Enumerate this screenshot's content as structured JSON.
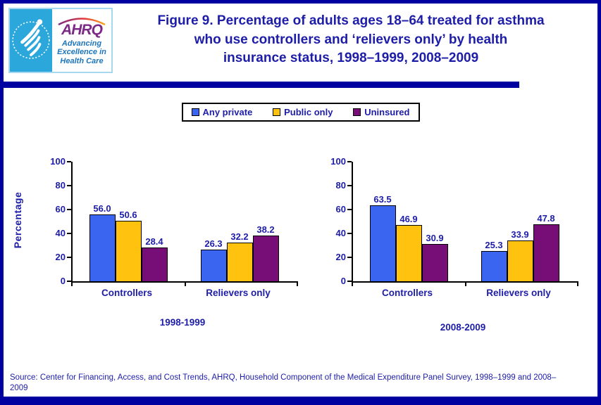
{
  "page": {
    "title": "Figure 9. Percentage of adults ages 18–64 treated for asthma\nwho use controllers and ‘relievers only’ by health\ninsurance status, 1998–1999, 2008–2009",
    "source": "Source: Center for Financing, Access, and Cost Trends, AHRQ, Household Component of the Medical Expenditure Panel Survey,  1998–1999 and 2008–2009"
  },
  "logo": {
    "org_abbr": "AHRQ",
    "tagline_line1": "Advancing",
    "tagline_line2": "Excellence in",
    "tagline_line3": "Health Care"
  },
  "legend": {
    "items": [
      {
        "label": "Any private",
        "color": "#3A65F1"
      },
      {
        "label": "Public only",
        "color": "#FFC20E"
      },
      {
        "label": "Uninsured",
        "color": "#770D77"
      }
    ]
  },
  "colors": {
    "accent_navy": "#0000A0",
    "text_navy": "#1D1DA8",
    "bar_blue": "#3A65F1",
    "bar_yellow": "#FFC20E",
    "bar_purple": "#770D77"
  },
  "chart_data": [
    {
      "type": "bar",
      "title": "1998-1999",
      "ylabel": "Percentage",
      "ylim": [
        0,
        100
      ],
      "yticks": [
        0,
        20,
        40,
        60,
        80,
        100
      ],
      "categories": [
        "Controllers",
        "Relievers only"
      ],
      "legend_position": "top-center",
      "grid": false,
      "series": [
        {
          "name": "Any private",
          "color": "#3A65F1",
          "values": [
            56.0,
            26.3
          ]
        },
        {
          "name": "Public only",
          "color": "#FFC20E",
          "values": [
            50.6,
            32.2
          ]
        },
        {
          "name": "Uninsured",
          "color": "#770D77",
          "values": [
            28.4,
            38.2
          ]
        }
      ]
    },
    {
      "type": "bar",
      "title": "2008-2009",
      "ylabel": "",
      "ylim": [
        0,
        100
      ],
      "yticks": [
        0,
        20,
        40,
        60,
        80,
        100
      ],
      "categories": [
        "Controllers",
        "Relievers only"
      ],
      "legend_position": "top-center",
      "grid": false,
      "series": [
        {
          "name": "Any private",
          "color": "#3A65F1",
          "values": [
            63.5,
            25.3
          ]
        },
        {
          "name": "Public only",
          "color": "#FFC20E",
          "values": [
            46.9,
            33.9
          ]
        },
        {
          "name": "Uninsured",
          "color": "#770D77",
          "values": [
            30.9,
            47.8
          ]
        }
      ]
    }
  ]
}
